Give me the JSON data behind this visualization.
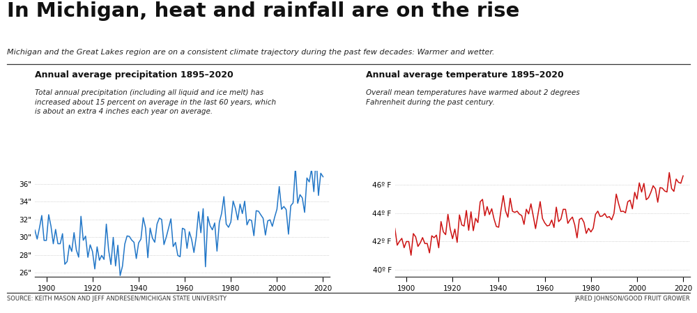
{
  "title": "In Michigan, heat and rainfall are on the rise",
  "subtitle": "Michigan and the Great Lakes region are on a consistent climate trajectory during the past few decades: Warmer and wetter.",
  "precip_title": "Annual average precipitation 1895–2020",
  "precip_desc": "Total annual precipitation (including all liquid and ice melt) has\nincreased about 15 percent on average in the last 60 years, which\nis about an extra 4 inches each year on average.",
  "temp_title": "Annual average temperature 1895–2020",
  "temp_desc": "Overall mean temperatures have warmed about 2 degrees\nFahrenheit during the past century.",
  "source_left": "SOURCE: KEITH MASON AND JEFF ANDRESEN/MICHIGAN STATE UNIVERSITY",
  "source_right": "JARED JOHNSON/GOOD FRUIT GROWER",
  "precip_color": "#2176c7",
  "temp_color": "#cc1111",
  "bg_color": "#ffffff",
  "grid_color": "#aaaaaa",
  "precip_ylim": [
    25.5,
    37.5
  ],
  "precip_yticks": [
    26,
    28,
    30,
    32,
    34,
    36
  ],
  "precip_ytick_labels": [
    "26\"",
    "28\"",
    "30\"",
    "32\"",
    "34\"",
    "36\""
  ],
  "temp_ylim": [
    39.5,
    47.0
  ],
  "temp_yticks": [
    40,
    42,
    44,
    46
  ],
  "temp_ytick_labels": [
    "40º F",
    "42º F",
    "44º F",
    "46º F"
  ],
  "xlim": [
    1895,
    2023
  ],
  "xticks": [
    1900,
    1920,
    1940,
    1960,
    1980,
    2000,
    2020
  ]
}
